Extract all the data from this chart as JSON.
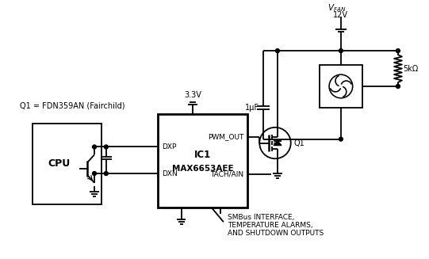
{
  "bg_color": "#ffffff",
  "line_color": "#000000",
  "line_width": 1.3,
  "labels": {
    "q1_label": "Q1 = FDN359AN (Fairchild)",
    "vfan": "V",
    "vfan_sub": "FAN",
    "v12": "12V",
    "cap_label": "1μF",
    "res_label": "5kΩ",
    "pwm_out": "PWM_OUT",
    "ic1": "IC1",
    "ic1_name": "MAX6653AEE",
    "dxp": "DXP",
    "dxn": "DXN",
    "tach": "TACH/AIN",
    "cpu": "CPU",
    "smbus": "SMBus INTERFACE,",
    "temp": "TEMPERATURE ALARMS,",
    "shutdown": "AND SHUTDOWN OUTPUTS",
    "vcc": "3.3V",
    "q1_mosfet": "Q1"
  }
}
